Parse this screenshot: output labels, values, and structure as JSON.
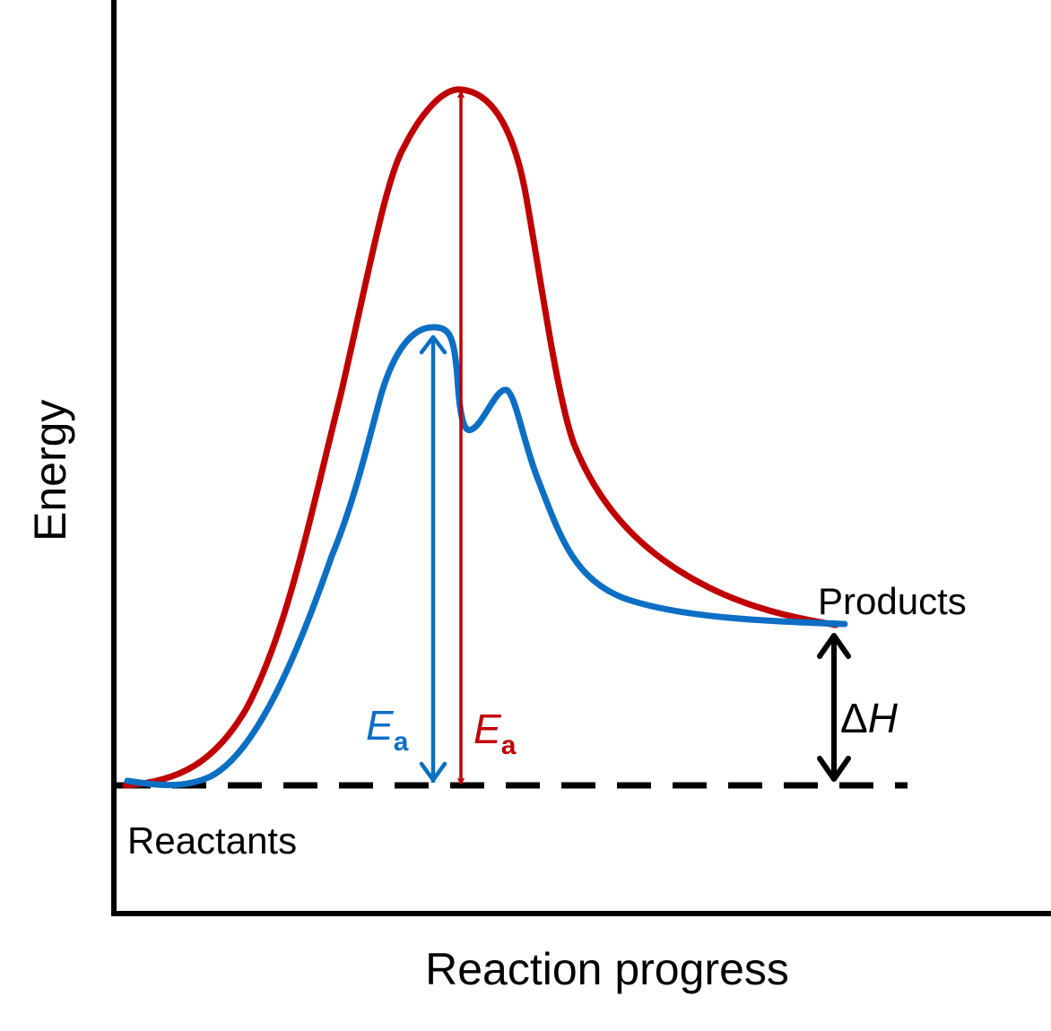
{
  "axes": {
    "y_label": "Energy",
    "x_label": "Reaction progress"
  },
  "states": {
    "reactants": "Reactants",
    "products": "Products"
  },
  "activation_energy": {
    "catalyzed": {
      "main": "E",
      "sub": "a",
      "color": "#0d6fc4"
    },
    "uncatalyzed": {
      "main": "E",
      "sub": "a",
      "color": "#c00000"
    }
  },
  "enthalpy_change": {
    "delta": "Δ",
    "symbol": "H",
    "color": "#000000"
  },
  "colors": {
    "uncatalyzed_curve": "#c00000",
    "catalyzed_curve": "#0d6fc4",
    "axes": "#000000",
    "baseline": "#000000"
  }
}
